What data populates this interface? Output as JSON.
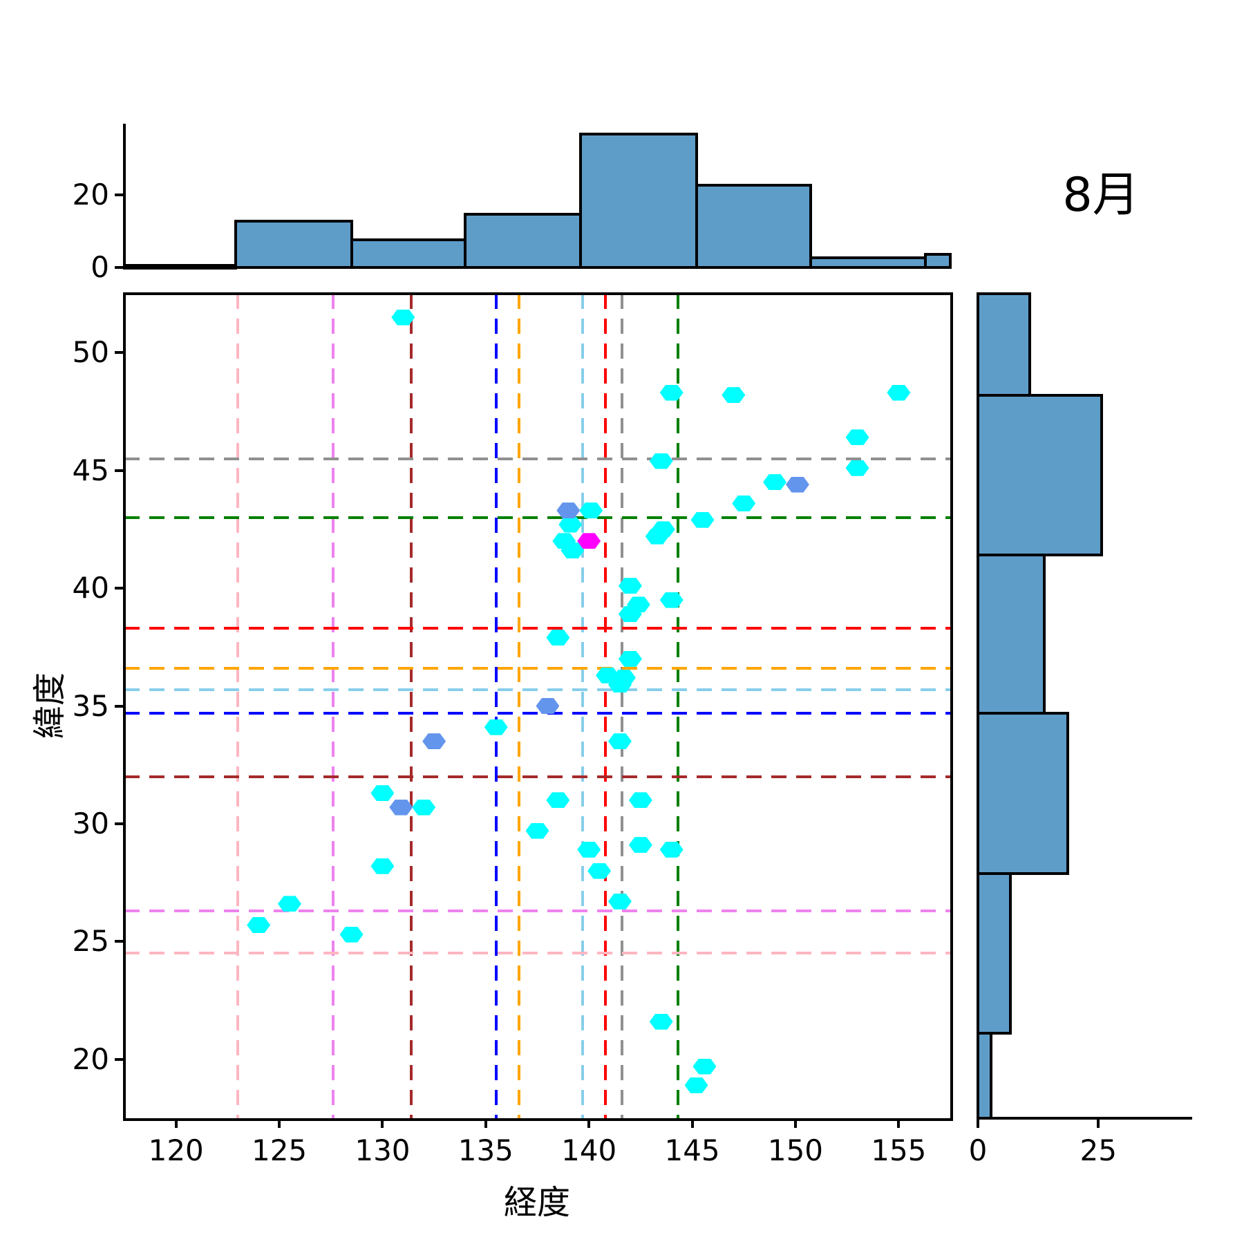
{
  "title": "8月",
  "main_plot": {
    "xlabel": "経度",
    "ylabel": "緯度"
  },
  "chart_data": [
    {
      "type": "scatter",
      "name": "main-joint-scatter",
      "title": "8月",
      "xlabel": "経度",
      "ylabel": "緯度",
      "xlim": [
        117.5,
        157.5
      ],
      "ylim": [
        17.5,
        52.5
      ],
      "xticks": [
        120,
        125,
        130,
        135,
        140,
        145,
        150,
        155
      ],
      "yticks": [
        20,
        25,
        30,
        35,
        40,
        45,
        50
      ],
      "grid": false,
      "marker": "hexagon",
      "series": [
        {
          "name": "cyan-points",
          "color": "#00ffff",
          "points": [
            [
              131.0,
              51.5
            ],
            [
              144.0,
              48.3
            ],
            [
              147.0,
              48.2
            ],
            [
              155.0,
              48.3
            ],
            [
              153.0,
              46.4
            ],
            [
              143.5,
              45.4
            ],
            [
              153.0,
              45.1
            ],
            [
              149.0,
              44.5
            ],
            [
              147.5,
              43.6
            ],
            [
              140.1,
              43.3
            ],
            [
              145.5,
              42.9
            ],
            [
              139.1,
              42.7
            ],
            [
              143.6,
              42.5
            ],
            [
              143.3,
              42.2
            ],
            [
              138.8,
              42.0
            ],
            [
              139.2,
              41.6
            ],
            [
              142.0,
              40.1
            ],
            [
              144.0,
              39.5
            ],
            [
              142.4,
              39.3
            ],
            [
              142.0,
              38.9
            ],
            [
              138.5,
              37.9
            ],
            [
              142.0,
              37.0
            ],
            [
              140.9,
              36.3
            ],
            [
              141.7,
              36.2
            ],
            [
              141.5,
              35.9
            ],
            [
              135.5,
              34.1
            ],
            [
              141.5,
              33.5
            ],
            [
              130.0,
              31.3
            ],
            [
              138.5,
              31.0
            ],
            [
              142.5,
              31.0
            ],
            [
              132.0,
              30.7
            ],
            [
              137.5,
              29.7
            ],
            [
              142.5,
              29.1
            ],
            [
              144.0,
              28.9
            ],
            [
              140.0,
              28.9
            ],
            [
              130.0,
              28.2
            ],
            [
              140.5,
              28.0
            ],
            [
              141.5,
              26.7
            ],
            [
              125.5,
              26.6
            ],
            [
              124.0,
              25.7
            ],
            [
              128.5,
              25.3
            ],
            [
              143.5,
              21.6
            ],
            [
              145.6,
              19.7
            ],
            [
              145.2,
              18.9
            ]
          ]
        },
        {
          "name": "blue-points",
          "color": "#6495ed",
          "points": [
            [
              150.1,
              44.4
            ],
            [
              139.0,
              43.3
            ],
            [
              138.0,
              35.0
            ],
            [
              132.5,
              33.5
            ],
            [
              130.9,
              30.7
            ]
          ]
        },
        {
          "name": "magenta-points",
          "color": "#ff00ff",
          "points": [
            [
              140.0,
              42.0
            ]
          ]
        }
      ],
      "crosshair_lines": {
        "vertical": [
          {
            "color_name": "pink",
            "color": "#ffb6c1",
            "x": 123.0
          },
          {
            "color_name": "violet",
            "color": "#ee82ee",
            "x": 127.6
          },
          {
            "color_name": "brown",
            "color": "#a52a2a",
            "x": 131.4
          },
          {
            "color_name": "blue",
            "color": "#0000ff",
            "x": 135.5
          },
          {
            "color_name": "orange",
            "color": "#ffa500",
            "x": 136.6
          },
          {
            "color_name": "skyblue",
            "color": "#87ceeb",
            "x": 139.7
          },
          {
            "color_name": "red",
            "color": "#ff0000",
            "x": 140.8
          },
          {
            "color_name": "gray",
            "color": "#909090",
            "x": 141.6
          },
          {
            "color_name": "green",
            "color": "#008000",
            "x": 144.3
          }
        ],
        "horizontal": [
          {
            "color_name": "gray",
            "color": "#909090",
            "y": 45.5
          },
          {
            "color_name": "green",
            "color": "#008000",
            "y": 43.0
          },
          {
            "color_name": "red",
            "color": "#ff0000",
            "y": 38.3
          },
          {
            "color_name": "orange",
            "color": "#ffa500",
            "y": 36.6
          },
          {
            "color_name": "skyblue",
            "color": "#87ceeb",
            "y": 35.7
          },
          {
            "color_name": "blue",
            "color": "#0000ff",
            "y": 34.7
          },
          {
            "color_name": "brown",
            "color": "#a52a2a",
            "y": 32.0
          },
          {
            "color_name": "violet",
            "color": "#ee82ee",
            "y": 26.3
          },
          {
            "color_name": "pink",
            "color": "#ffb6c1",
            "y": 24.5
          }
        ]
      }
    },
    {
      "type": "bar",
      "name": "top-marginal-histogram",
      "orientation": "vertical",
      "bin_edges": [
        117.5,
        122.9,
        128.5,
        134.0,
        139.6,
        145.2,
        150.75,
        156.3,
        157.5
      ],
      "values": [
        1,
        13,
        8,
        15,
        37,
        23,
        3,
        4
      ],
      "yticks": [
        0,
        20
      ],
      "ylim": [
        0,
        39.4
      ],
      "bar_color": "#5f9dc9"
    },
    {
      "type": "bar",
      "name": "right-marginal-histogram",
      "orientation": "horizontal",
      "bin_edges": [
        17.5,
        21.1,
        27.9,
        34.7,
        41.4,
        48.2,
        52.5
      ],
      "values": [
        3,
        7,
        19,
        14,
        26,
        11
      ],
      "xticks": [
        0,
        25
      ],
      "xlim": [
        0,
        44.8
      ],
      "bar_color": "#5f9dc9"
    }
  ]
}
